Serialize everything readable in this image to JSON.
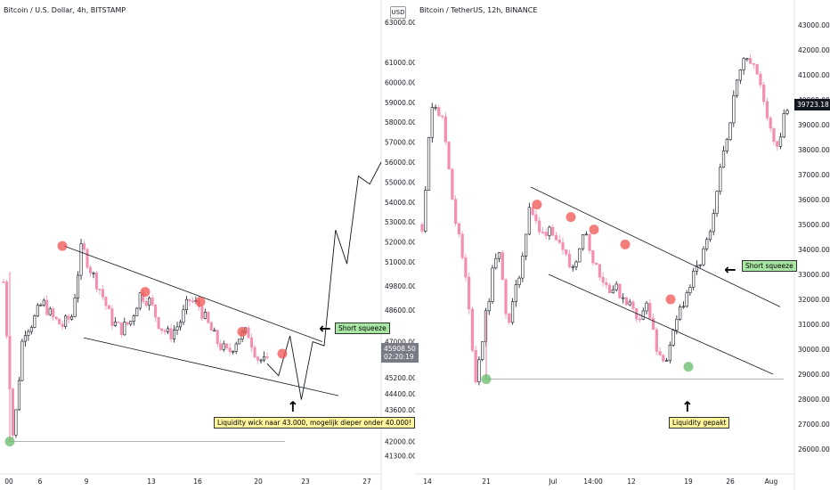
{
  "charts": [
    {
      "title": "Bitcoin / U.S. Dollar, 4h, BITSTAMP",
      "usd_label": "USD",
      "price_ticks": [
        "63000.00",
        "61000.00",
        "60000.00",
        "59000.00",
        "58000.00",
        "57000.00",
        "56000.00",
        "55000.00",
        "54000.00",
        "53000.00",
        "52000.00",
        "51000.00",
        "49800.00",
        "48600.00",
        "47000.00",
        "45200.00",
        "44400.00",
        "43600.00",
        "42800.00",
        "42000.00",
        "41300.00"
      ],
      "time_ticks": [
        "00",
        "6",
        "9",
        "13",
        "16",
        "20",
        "23",
        "27"
      ],
      "current_price": "45908.50",
      "countdown": "02:20:19",
      "annotations": {
        "short_squeeze": "Short squeeze",
        "liquidity_note": "Liquidity wick naar 43.000, mogelijk dieper onder 40.000!"
      },
      "colors": {
        "up": "#131722",
        "down": "#f48fb1",
        "red_marker": "#ef5350",
        "green_marker": "#66bb6a"
      }
    },
    {
      "title": "Bitcoin / TetherUS, 12h, BINANCE",
      "price_ticks": [
        "43000.00",
        "42000.00",
        "41000.00",
        "40000.00",
        "39000.00",
        "38000.00",
        "37000.00",
        "36000.00",
        "35000.00",
        "34000.00",
        "33000.00",
        "32000.00",
        "31000.00",
        "30000.00",
        "29000.00",
        "28000.00",
        "27000.00",
        "26000.00"
      ],
      "time_ticks": [
        "14",
        "21",
        "Jul",
        "14:00",
        "12",
        "19",
        "26",
        "Aug"
      ],
      "current_price": "39723.18",
      "annotations": {
        "short_squeeze": "Short squeeze",
        "liquidity_note": "Liquidity gepakt"
      },
      "colors": {
        "up": "#131722",
        "down": "#f48fb1",
        "red_marker": "#ef5350",
        "green_marker": "#66bb6a"
      }
    }
  ],
  "chart_data": [
    {
      "type": "candlestick",
      "title": "Bitcoin / U.S. Dollar, 4h, BITSTAMP",
      "ylim": [
        41000,
        63500
      ],
      "x_ticks": [
        "00",
        "6",
        "9",
        "13",
        "16",
        "20",
        "23",
        "27"
      ],
      "approx_close_path": [
        50000,
        42000,
        47500,
        48000,
        49000,
        48200,
        47800,
        48300,
        51800,
        50500,
        49500,
        48100,
        47600,
        48000,
        49400,
        49000,
        47800,
        47300,
        47900,
        49100,
        48800,
        47800,
        46900,
        46400,
        47200,
        47500,
        46200,
        45900
      ],
      "projection_path": [
        45900,
        45300,
        47300,
        44100,
        47000,
        46800,
        52600,
        50900,
        55300,
        54900,
        56000
      ],
      "trendlines": [
        {
          "name": "upper",
          "from": [
            8,
            51800
          ],
          "to": [
            25,
            47000
          ]
        },
        {
          "name": "lower",
          "from": [
            6,
            47200
          ],
          "to": [
            28,
            44400
          ]
        }
      ],
      "markers": [
        {
          "type": "red",
          "price": 51800
        },
        {
          "type": "red",
          "price": 49500
        },
        {
          "type": "red",
          "price": 49000
        },
        {
          "type": "red",
          "price": 47500
        },
        {
          "type": "red",
          "price": 46400
        },
        {
          "type": "green",
          "price": 42000
        }
      ],
      "current_price": 45908.5
    },
    {
      "type": "candlestick",
      "title": "Bitcoin / TetherUS, 12h, BINANCE",
      "ylim": [
        25500,
        43500
      ],
      "x_ticks": [
        "14",
        "21",
        "Jul",
        "14:00",
        "12",
        "19",
        "26",
        "Aug"
      ],
      "approx_close_path": [
        35000,
        40200,
        39000,
        35500,
        33000,
        28800,
        31500,
        34200,
        31000,
        32800,
        35800,
        34500,
        35000,
        33800,
        33200,
        34800,
        33600,
        32600,
        32400,
        32000,
        31300,
        31800,
        29500,
        29800,
        31600,
        32600,
        33600,
        34800,
        37800,
        40000,
        42000,
        41300,
        39600,
        38100,
        39723
      ],
      "trendlines": [
        {
          "name": "upper",
          "from": [
            31,
            36500
          ],
          "to": [
            76,
            31600
          ]
        },
        {
          "name": "lower",
          "from": [
            31,
            33000
          ],
          "to": [
            76,
            29000
          ]
        }
      ],
      "markers": [
        {
          "type": "red",
          "price": 35800
        },
        {
          "type": "red",
          "price": 35300
        },
        {
          "type": "red",
          "price": 34800
        },
        {
          "type": "red",
          "price": 34200
        },
        {
          "type": "red",
          "price": 32000
        },
        {
          "type": "green",
          "price": 29300
        },
        {
          "type": "green",
          "price": 28800
        }
      ],
      "current_price": 39723.18
    }
  ]
}
